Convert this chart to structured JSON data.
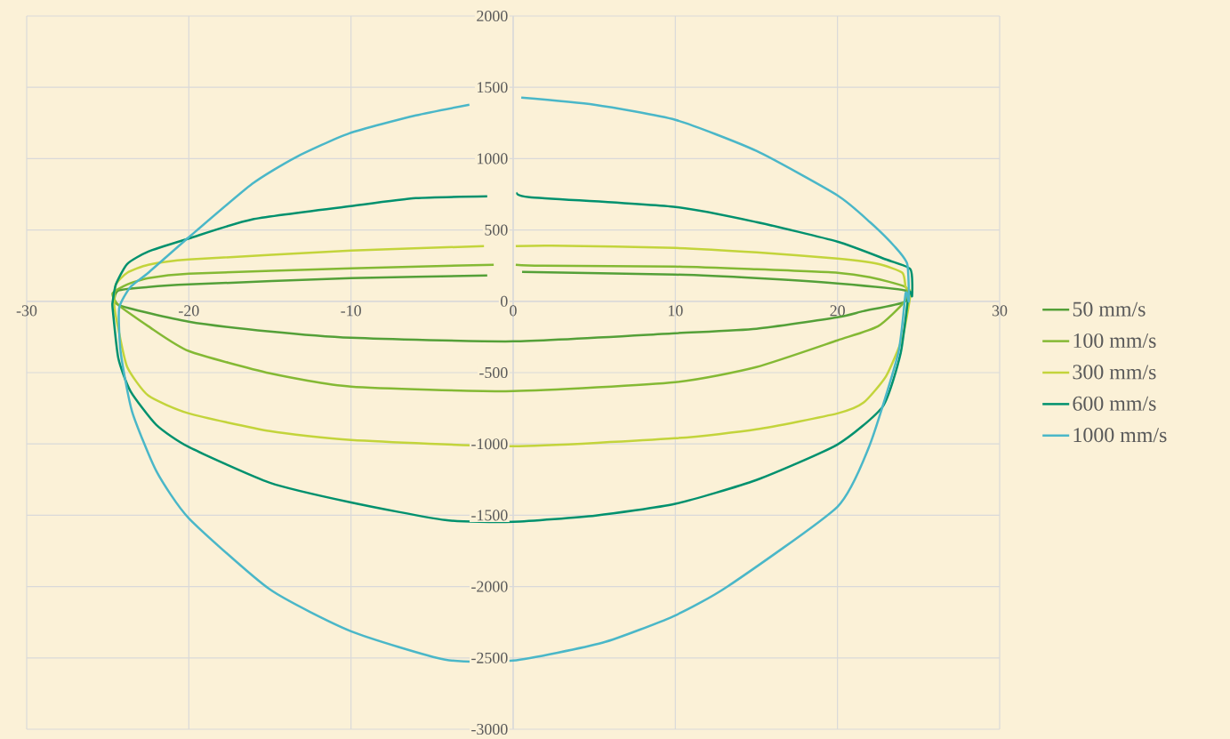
{
  "chart_data": {
    "type": "line",
    "xlim": [
      -30,
      30
    ],
    "ylim": [
      -3000,
      2000
    ],
    "xticks": [
      -30,
      -20,
      -10,
      0,
      10,
      20,
      30
    ],
    "yticks": [
      -3000,
      -2500,
      -2000,
      -1500,
      -1000,
      -500,
      0,
      500,
      1000,
      1500,
      2000
    ],
    "grid": true,
    "legend": "right",
    "series": [
      {
        "name": "50 mm/s",
        "color": "#54a038",
        "x": [
          0.55,
          10,
          15,
          20,
          24.2,
          24.1,
          21.6,
          20,
          15,
          10,
          0,
          -10,
          -15,
          -20,
          -24.35,
          -24.35,
          -22.5,
          -20,
          -10,
          -1.6
        ],
        "values": [
          206,
          187,
          162,
          125,
          75,
          -6,
          -69,
          -112,
          -193,
          -224,
          -281,
          -256,
          -212,
          -143,
          -25,
          75,
          100,
          118,
          162,
          181
        ]
      },
      {
        "name": "100 mm/s",
        "color": "#84b934",
        "x": [
          0.16,
          1.8,
          10,
          15,
          20,
          22,
          24.2,
          24.1,
          22.5,
          20,
          15,
          10,
          0,
          -10,
          -15,
          -20,
          -22.5,
          -24.35,
          -24.7,
          -23.8,
          -22.5,
          -20,
          -10,
          -1.2
        ],
        "values": [
          256,
          249,
          243,
          224,
          200,
          168,
          100,
          -6,
          -175,
          -274,
          -461,
          -567,
          -630,
          -598,
          -505,
          -349,
          -175,
          -25,
          56,
          118,
          162,
          193,
          231,
          256
        ]
      },
      {
        "name": "300 mm/s",
        "color": "#c3d43b",
        "x": [
          0.16,
          2.4,
          10,
          15,
          20,
          22.5,
          24,
          24.2,
          24.5,
          24,
          23,
          21.6,
          20,
          15,
          10,
          0,
          -10,
          -15,
          -20,
          -22.5,
          -23.8,
          -24.35,
          -24.6,
          -24.5,
          -23.8,
          -22.5,
          -20,
          -10,
          -1.8
        ],
        "values": [
          387,
          390,
          374,
          343,
          299,
          262,
          200,
          100,
          56,
          -256,
          -524,
          -711,
          -786,
          -898,
          -960,
          -1016,
          -973,
          -910,
          -786,
          -661,
          -461,
          -193,
          -25,
          118,
          200,
          256,
          293,
          355,
          387
        ]
      },
      {
        "name": "600 mm/s",
        "color": "#00916e",
        "x": [
          0.27,
          1,
          10,
          15,
          20,
          23,
          24.5,
          24.6,
          24.4,
          23.9,
          22.8,
          20,
          15,
          10,
          5.1,
          0,
          -4.2,
          -10,
          -15,
          -20,
          -22,
          -23.6,
          -24.35,
          -24.7,
          -24.7,
          -24.5,
          -23.8,
          -22.5,
          -20,
          -16.1,
          -10,
          -6,
          -1.6
        ],
        "values": [
          761,
          730,
          661,
          555,
          418,
          293,
          224,
          37,
          56,
          -361,
          -736,
          -1004,
          -1253,
          -1420,
          -1502,
          -1546,
          -1534,
          -1410,
          -1272,
          -1022,
          -867,
          -630,
          -399,
          -50,
          -6,
          118,
          262,
          349,
          440,
          574,
          667,
          723,
          736
        ]
      },
      {
        "name": "1000 mm/s",
        "color": "#4ab7c8",
        "x": [
          0.5,
          5,
          10,
          15,
          20,
          22,
          23.5,
          24.3,
          24.4,
          24.2,
          23.75,
          22,
          20,
          13.2,
          9.9,
          5.5,
          0,
          -4.2,
          -10,
          -15,
          -20,
          -22,
          -23.5,
          -24.2,
          -24.3,
          -23.6,
          -22.5,
          -20,
          -16.1,
          -13.4,
          -10.1,
          -6,
          -2.7
        ],
        "values": [
          1428,
          1378,
          1272,
          1054,
          742,
          555,
          387,
          262,
          0,
          56,
          -361,
          -1004,
          -1440,
          -2001,
          -2207,
          -2394,
          -2519,
          -2512,
          -2313,
          -2020,
          -1521,
          -1191,
          -773,
          -361,
          -50,
          100,
          200,
          449,
          823,
          1010,
          1178,
          1303,
          1378
        ]
      }
    ]
  }
}
